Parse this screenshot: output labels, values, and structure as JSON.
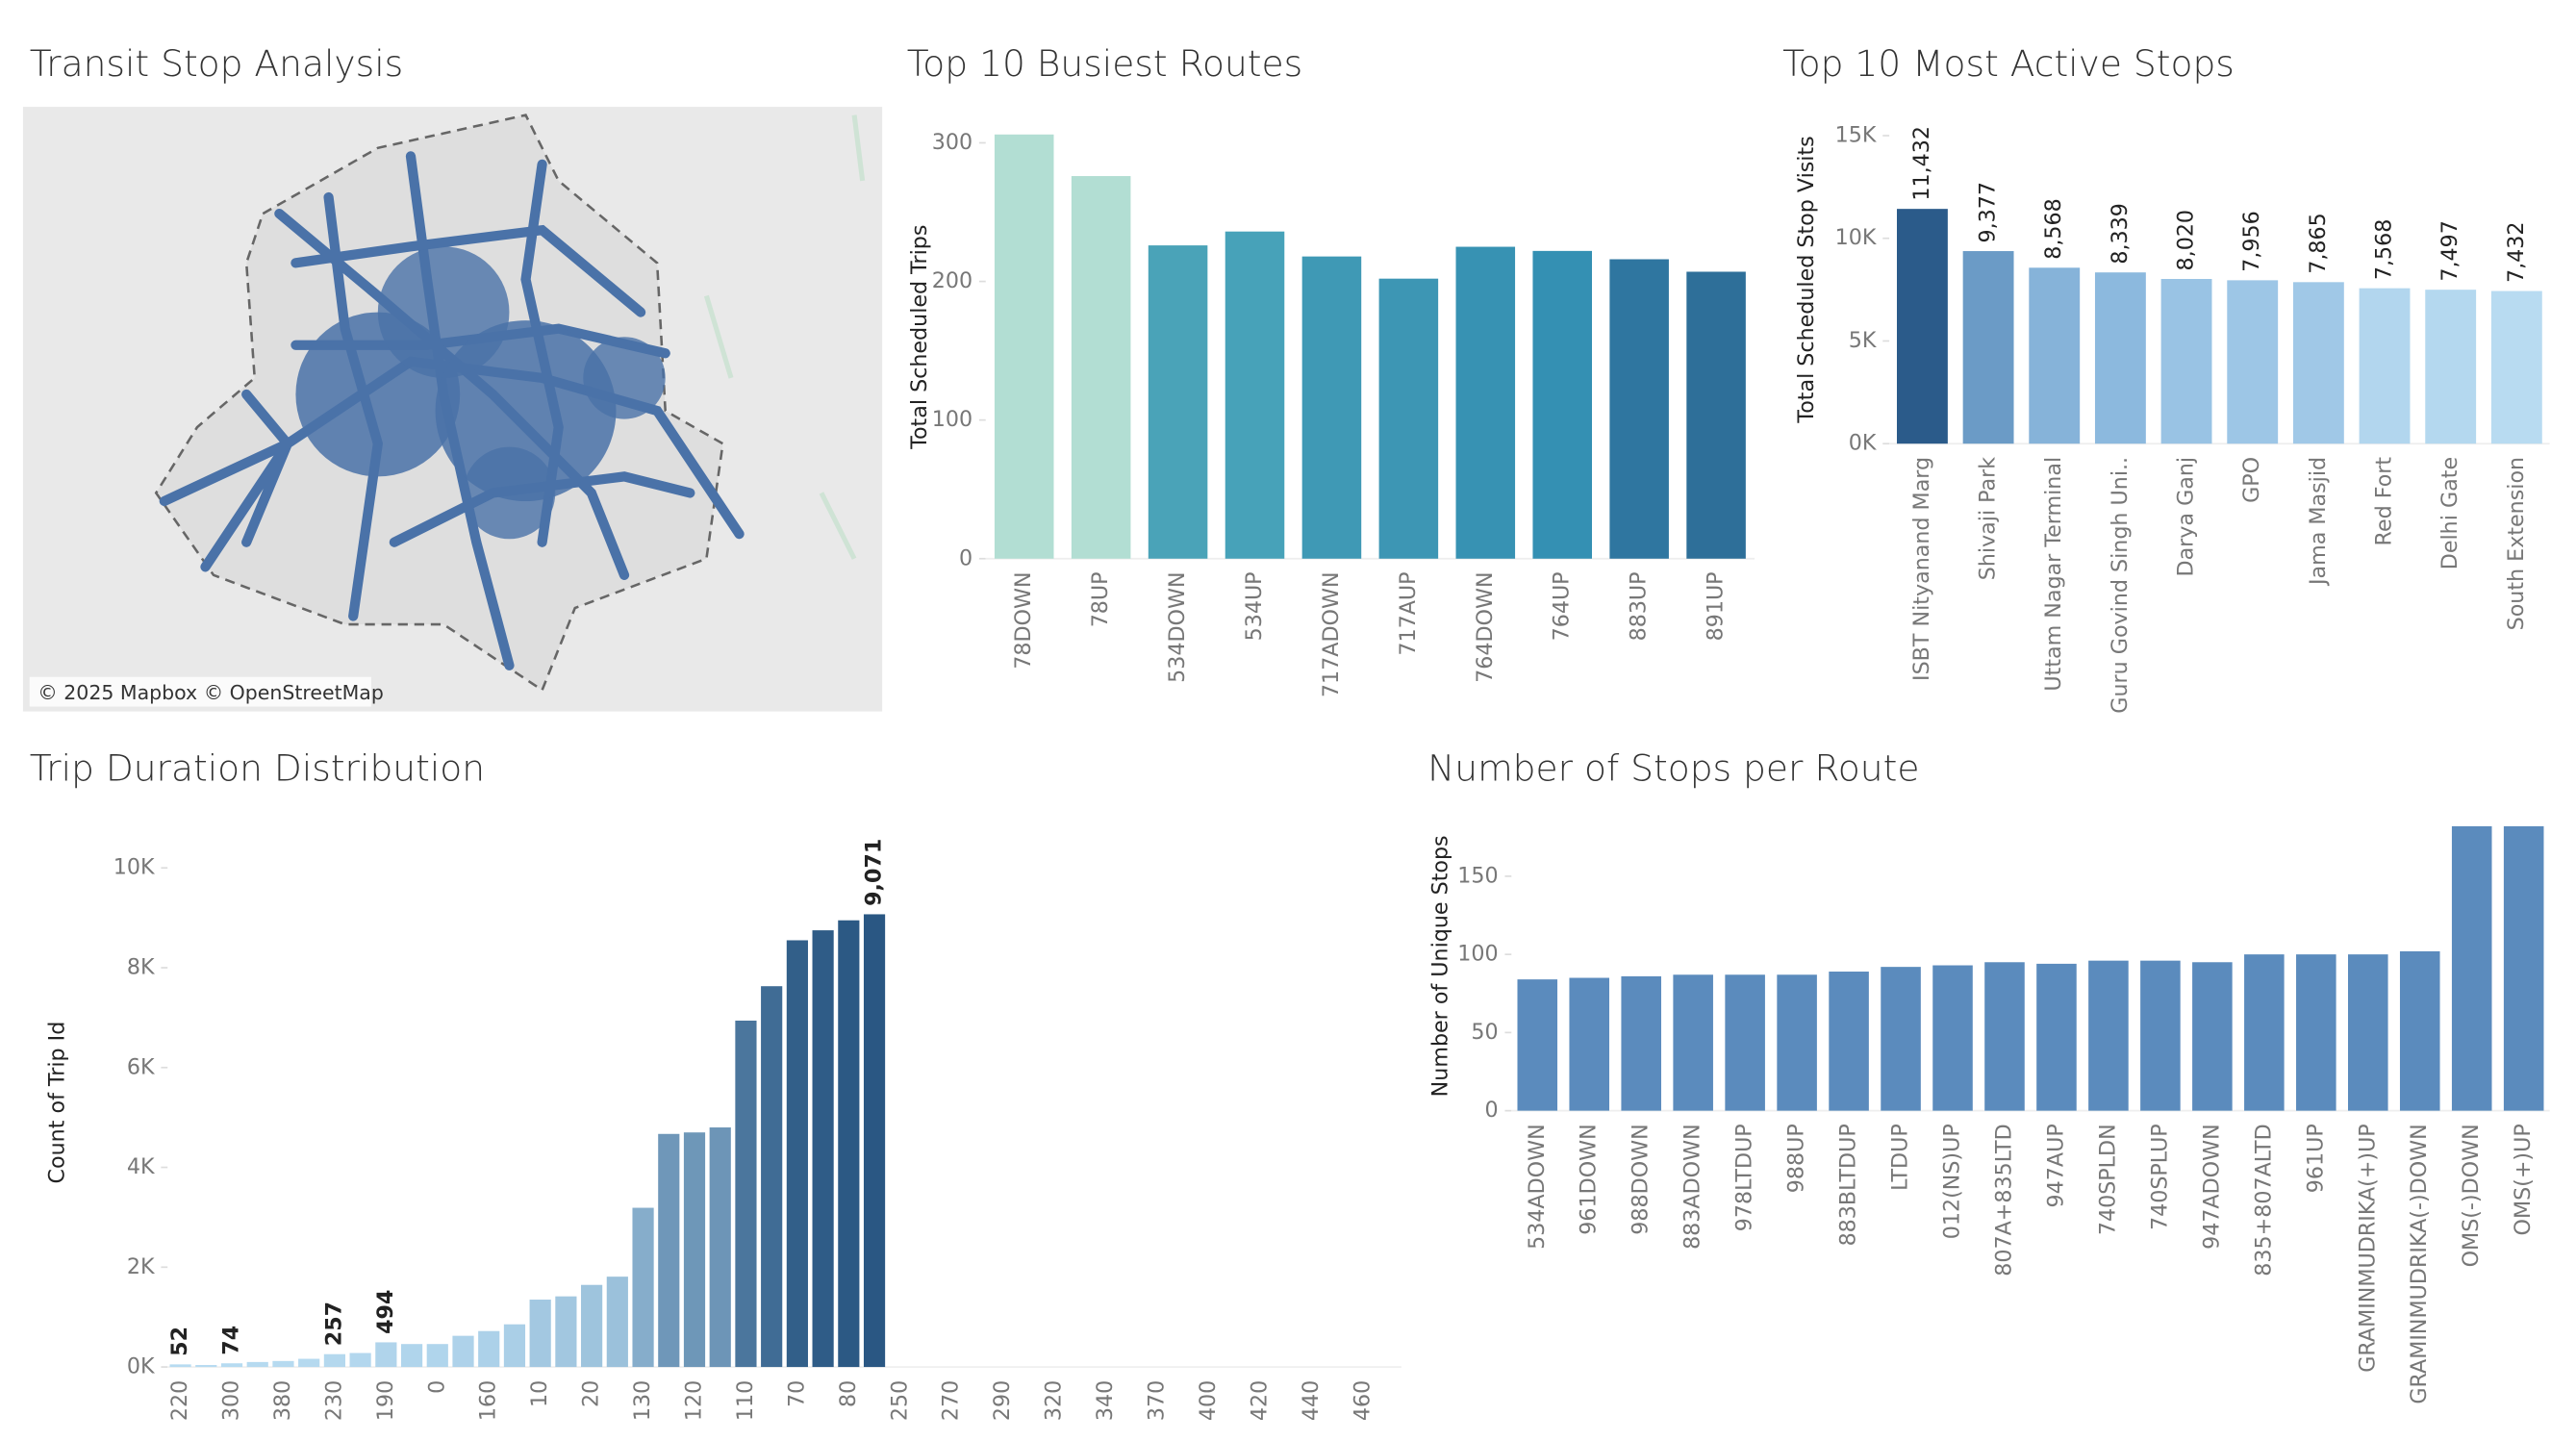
{
  "map": {
    "title": "Transit Stop Analysis",
    "attribution": "© 2025 Mapbox © OpenStreetMap"
  },
  "chart_data": [
    {
      "type": "bar",
      "title": "Top 10 Busiest Routes",
      "y_label": "Total Scheduled Trips",
      "categories": [
        "78DOWN",
        "78UP",
        "534DOWN",
        "534UP",
        "717ADOWN",
        "717AUP",
        "764DOWN",
        "764UP",
        "883UP",
        "891UP"
      ],
      "values": [
        306,
        276,
        226,
        236,
        218,
        202,
        225,
        222,
        216,
        207
      ],
      "colors": [
        "#b2ded3",
        "#b2ded3",
        "#4aa3b8",
        "#47a2b9",
        "#3f99b5",
        "#3d96b4",
        "#3792b3",
        "#3490b3",
        "#2f76a0",
        "#2e6f99"
      ],
      "ylim": [
        0,
        320
      ],
      "yticks": [
        0,
        100,
        200,
        300
      ]
    },
    {
      "type": "bar",
      "title": "Top 10 Most Active Stops",
      "y_label": "Total Scheduled Stop Visits",
      "categories": [
        "ISBT Nityanand Marg",
        "Shivaji Park",
        "Uttam Nagar Terminal",
        "Guru Govind Singh Uni..",
        "Darya Ganj",
        "GPO",
        "Jama Masjid",
        "Red Fort",
        "Delhi Gate",
        "South Extension"
      ],
      "values": [
        11432,
        9377,
        8568,
        8339,
        8020,
        7956,
        7865,
        7568,
        7497,
        7432
      ],
      "value_labels": [
        "11,432",
        "9,377",
        "8,568",
        "8,339",
        "8,020",
        "7,956",
        "7,865",
        "7,568",
        "7,497",
        "7,432"
      ],
      "colors": [
        "#2b5b8a",
        "#6b9bc6",
        "#86b3d9",
        "#8cb9de",
        "#99c3e4",
        "#9dc6e6",
        "#a0c8e7",
        "#b2d6ee",
        "#b4d8ef",
        "#b8dbf1"
      ],
      "ylim": [
        0,
        16000
      ],
      "yticks": [
        {
          "value": 0,
          "label": "0K"
        },
        {
          "value": 5000,
          "label": "5K"
        },
        {
          "value": 10000,
          "label": "10K"
        },
        {
          "value": 15000,
          "label": "15K"
        }
      ]
    },
    {
      "type": "bar",
      "title": "Trip Duration Distribution",
      "y_label": "Count of Trip Id",
      "categories": [
        "220",
        null,
        "300",
        null,
        "380",
        null,
        "230",
        null,
        "190",
        null,
        "0",
        null,
        "160",
        null,
        "10",
        null,
        "20",
        null,
        "130",
        null,
        "120",
        null,
        "110",
        null,
        "70",
        null,
        "80",
        null,
        "250",
        null,
        "270",
        null,
        "290",
        null,
        "320",
        null,
        "340",
        null,
        "370",
        null,
        "400",
        null,
        "420",
        null,
        "440",
        null,
        "460",
        null
      ],
      "values": [
        52,
        40,
        74,
        100,
        120,
        164,
        257,
        280,
        494,
        460,
        460,
        625,
        720,
        855,
        1350,
        1415,
        1645,
        1810,
        3190,
        4670,
        4700,
        4800,
        6940,
        7630,
        8550,
        8750,
        8950,
        9071,
        null,
        null,
        null,
        null,
        null,
        null,
        null,
        null,
        null,
        null,
        null,
        null,
        null,
        null,
        null,
        null,
        null,
        null,
        null,
        null
      ],
      "value_labels": [
        "52",
        null,
        "74",
        null,
        null,
        null,
        "257",
        null,
        "494",
        null,
        null,
        null,
        null,
        null,
        null,
        null,
        null,
        null,
        null,
        null,
        null,
        null,
        null,
        null,
        null,
        null,
        null,
        "9,071",
        null,
        null,
        null,
        null,
        null,
        null,
        null,
        null,
        null,
        null,
        null,
        null,
        null,
        null,
        null,
        null,
        null,
        null,
        null,
        null
      ],
      "color_range": [
        "#b7dbf1",
        "#2a5783"
      ],
      "ylim": [
        0,
        10600
      ],
      "yticks": [
        {
          "value": 0,
          "label": "0K"
        },
        {
          "value": 2000,
          "label": "2K"
        },
        {
          "value": 4000,
          "label": "4K"
        },
        {
          "value": 6000,
          "label": "6K"
        },
        {
          "value": 8000,
          "label": "8K"
        },
        {
          "value": 10000,
          "label": "10K"
        }
      ]
    },
    {
      "type": "bar",
      "title": "Number of Stops per Route",
      "y_label": "Number of Unique Stops",
      "categories": [
        "534ADOWN",
        "961DOWN",
        "988DOWN",
        "883ADOWN",
        "978LTDUP",
        "988UP",
        "883BLTDUP",
        "LTDUP",
        "012(NS)UP",
        "807A+835LTD",
        "947AUP",
        "740SPLDN",
        "740SPLUP",
        "947ADOWN",
        "835+807ALTD",
        "961UP",
        "GRAMINMUDRIKA(+)UP",
        "GRAMINMUDRIKA(-)DOWN",
        "OMS(-)DOWN",
        "OMS(+)UP"
      ],
      "values": [
        84,
        85,
        86,
        87,
        87,
        87,
        89,
        92,
        93,
        95,
        94,
        96,
        96,
        95,
        100,
        100,
        100,
        102,
        182,
        182
      ],
      "color": "#5b8bbd",
      "ylim": [
        0,
        185
      ],
      "yticks": [
        0,
        50,
        100,
        150
      ]
    }
  ]
}
